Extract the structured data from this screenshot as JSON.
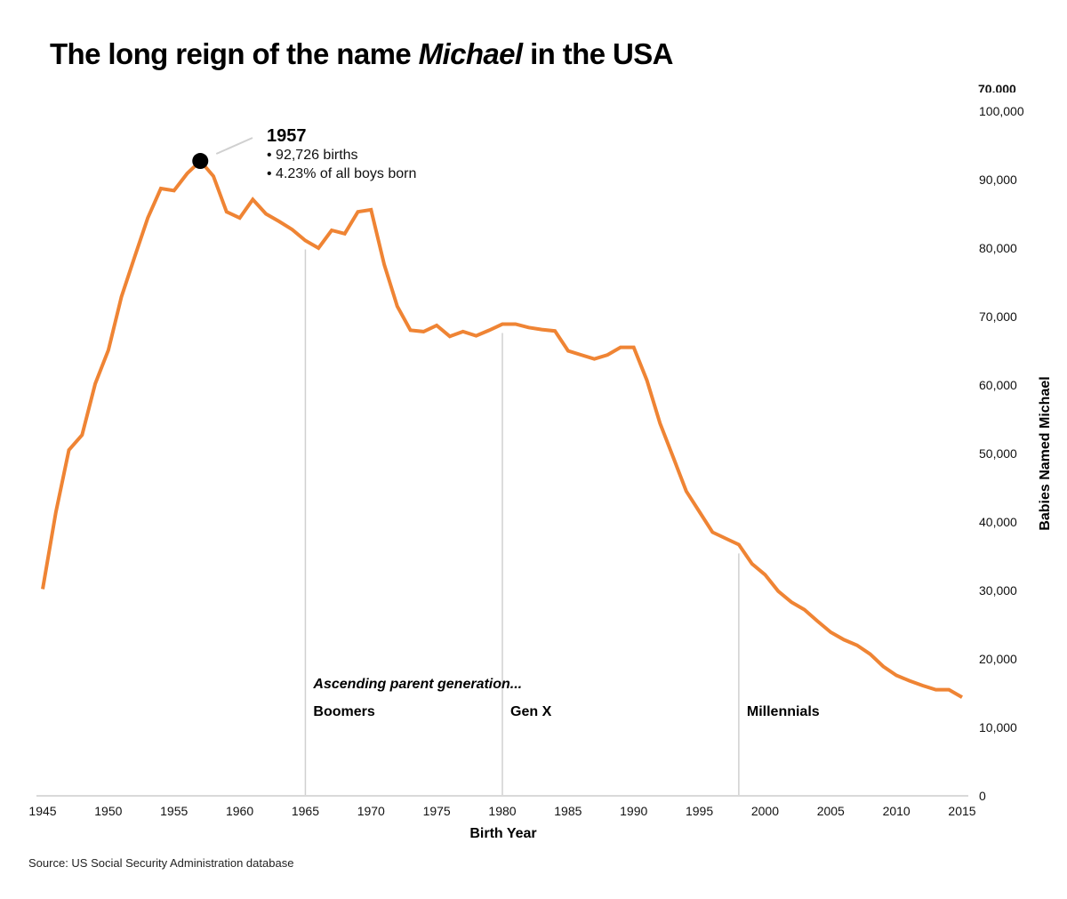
{
  "title": {
    "before": "The long reign of the name ",
    "emphasis": "Michael",
    "after": " in the USA"
  },
  "source": "Source: US Social Security Administration database",
  "colors": {
    "line": "#ef8434",
    "marker": "#000000",
    "axis": "#d9d9d9",
    "generation_line": "#d0d0d0"
  },
  "chart_data": {
    "type": "line",
    "title": "The long reign of the name Michael in the USA",
    "xlabel": "Birth Year",
    "ylabel": "Babies Named Michael",
    "xlim": [
      1945,
      2015
    ],
    "ylim": [
      0,
      100000
    ],
    "x_ticks": [
      "1945",
      "1950",
      "1955",
      "1960",
      "1965",
      "1970",
      "1975",
      "1980",
      "1985",
      "1990",
      "1995",
      "2000",
      "2005",
      "2010",
      "2015"
    ],
    "y_ticks": [
      "0",
      "10,000",
      "20,000",
      "30,000",
      "40,000",
      "50,000",
      "60,000",
      "70,000",
      "80,000",
      "90,000",
      "100,000"
    ],
    "clipped_tick": "70,000",
    "y_axis_side": "right",
    "grid": false,
    "series": [
      {
        "name": "Babies Named Michael",
        "x": [
          1945,
          1946,
          1947,
          1948,
          1949,
          1950,
          1951,
          1952,
          1953,
          1954,
          1955,
          1956,
          1957,
          1958,
          1959,
          1960,
          1961,
          1962,
          1963,
          1964,
          1965,
          1966,
          1967,
          1968,
          1969,
          1970,
          1971,
          1972,
          1973,
          1974,
          1975,
          1976,
          1977,
          1978,
          1979,
          1980,
          1981,
          1982,
          1983,
          1984,
          1985,
          1986,
          1987,
          1988,
          1989,
          1990,
          1991,
          1992,
          1993,
          1994,
          1995,
          1996,
          1997,
          1998,
          1999,
          2000,
          2001,
          2002,
          2003,
          2004,
          2005,
          2006,
          2007,
          2008,
          2009,
          2010,
          2011,
          2012,
          2013,
          2014,
          2015
        ],
        "values": [
          30200,
          41400,
          50500,
          52700,
          60200,
          65100,
          72900,
          78700,
          84400,
          88700,
          88400,
          90900,
          92726,
          90500,
          85300,
          84400,
          87100,
          85000,
          83900,
          82700,
          81100,
          80000,
          82600,
          82100,
          85300,
          85600,
          77600,
          71500,
          68000,
          67800,
          68700,
          67100,
          67800,
          67200,
          68000,
          68900,
          68900,
          68400,
          68100,
          67900,
          65000,
          64400,
          63800,
          64400,
          65500,
          65500,
          60700,
          54400,
          49500,
          44500,
          41500,
          38500,
          37600,
          36700,
          33900,
          32300,
          29900,
          28300,
          27200,
          25500,
          23900,
          22800,
          22000,
          20700,
          18900,
          17600,
          16800,
          16100,
          15500,
          15500,
          14400
        ]
      }
    ],
    "annotation": {
      "year": "1957",
      "x": 1957,
      "y": 92726,
      "lines": [
        "• 92,726 births",
        "• 4.23% of all boys born"
      ]
    },
    "generations": {
      "intro": "Ascending parent generation...",
      "items": [
        {
          "label": "Boomers",
          "year": 1965
        },
        {
          "label": "Gen X",
          "year": 1980
        },
        {
          "label": "Millennials",
          "year": 1998
        }
      ]
    }
  }
}
